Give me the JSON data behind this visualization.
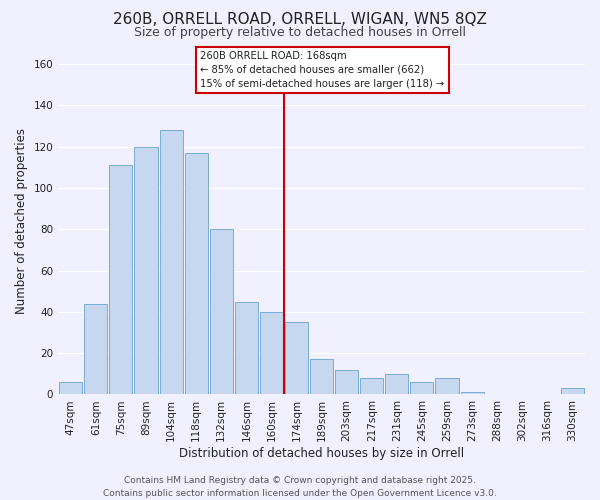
{
  "title": "260B, ORRELL ROAD, ORRELL, WIGAN, WN5 8QZ",
  "subtitle": "Size of property relative to detached houses in Orrell",
  "xlabel": "Distribution of detached houses by size in Orrell",
  "ylabel": "Number of detached properties",
  "bar_labels": [
    "47sqm",
    "61sqm",
    "75sqm",
    "89sqm",
    "104sqm",
    "118sqm",
    "132sqm",
    "146sqm",
    "160sqm",
    "174sqm",
    "189sqm",
    "203sqm",
    "217sqm",
    "231sqm",
    "245sqm",
    "259sqm",
    "273sqm",
    "288sqm",
    "302sqm",
    "316sqm",
    "330sqm"
  ],
  "bar_values": [
    6,
    44,
    111,
    120,
    128,
    117,
    80,
    45,
    40,
    35,
    17,
    12,
    8,
    10,
    6,
    8,
    1,
    0,
    0,
    0,
    3
  ],
  "bar_color": "#c5d8f0",
  "bar_edge_color": "#7aadd4",
  "ylim": [
    0,
    168
  ],
  "yticks": [
    0,
    20,
    40,
    60,
    80,
    100,
    120,
    140,
    160
  ],
  "vline_x": 8.5,
  "vline_color": "#cc0000",
  "annotation_title": "260B ORRELL ROAD: 168sqm",
  "annotation_line1": "← 85% of detached houses are smaller (662)",
  "annotation_line2": "15% of semi-detached houses are larger (118) →",
  "footer_line1": "Contains HM Land Registry data © Crown copyright and database right 2025.",
  "footer_line2": "Contains public sector information licensed under the Open Government Licence v3.0.",
  "background_color": "#f0f0ff",
  "grid_color": "#ffffff",
  "title_fontsize": 11,
  "subtitle_fontsize": 9,
  "axis_label_fontsize": 8.5,
  "tick_fontsize": 7.5,
  "footer_fontsize": 6.5
}
